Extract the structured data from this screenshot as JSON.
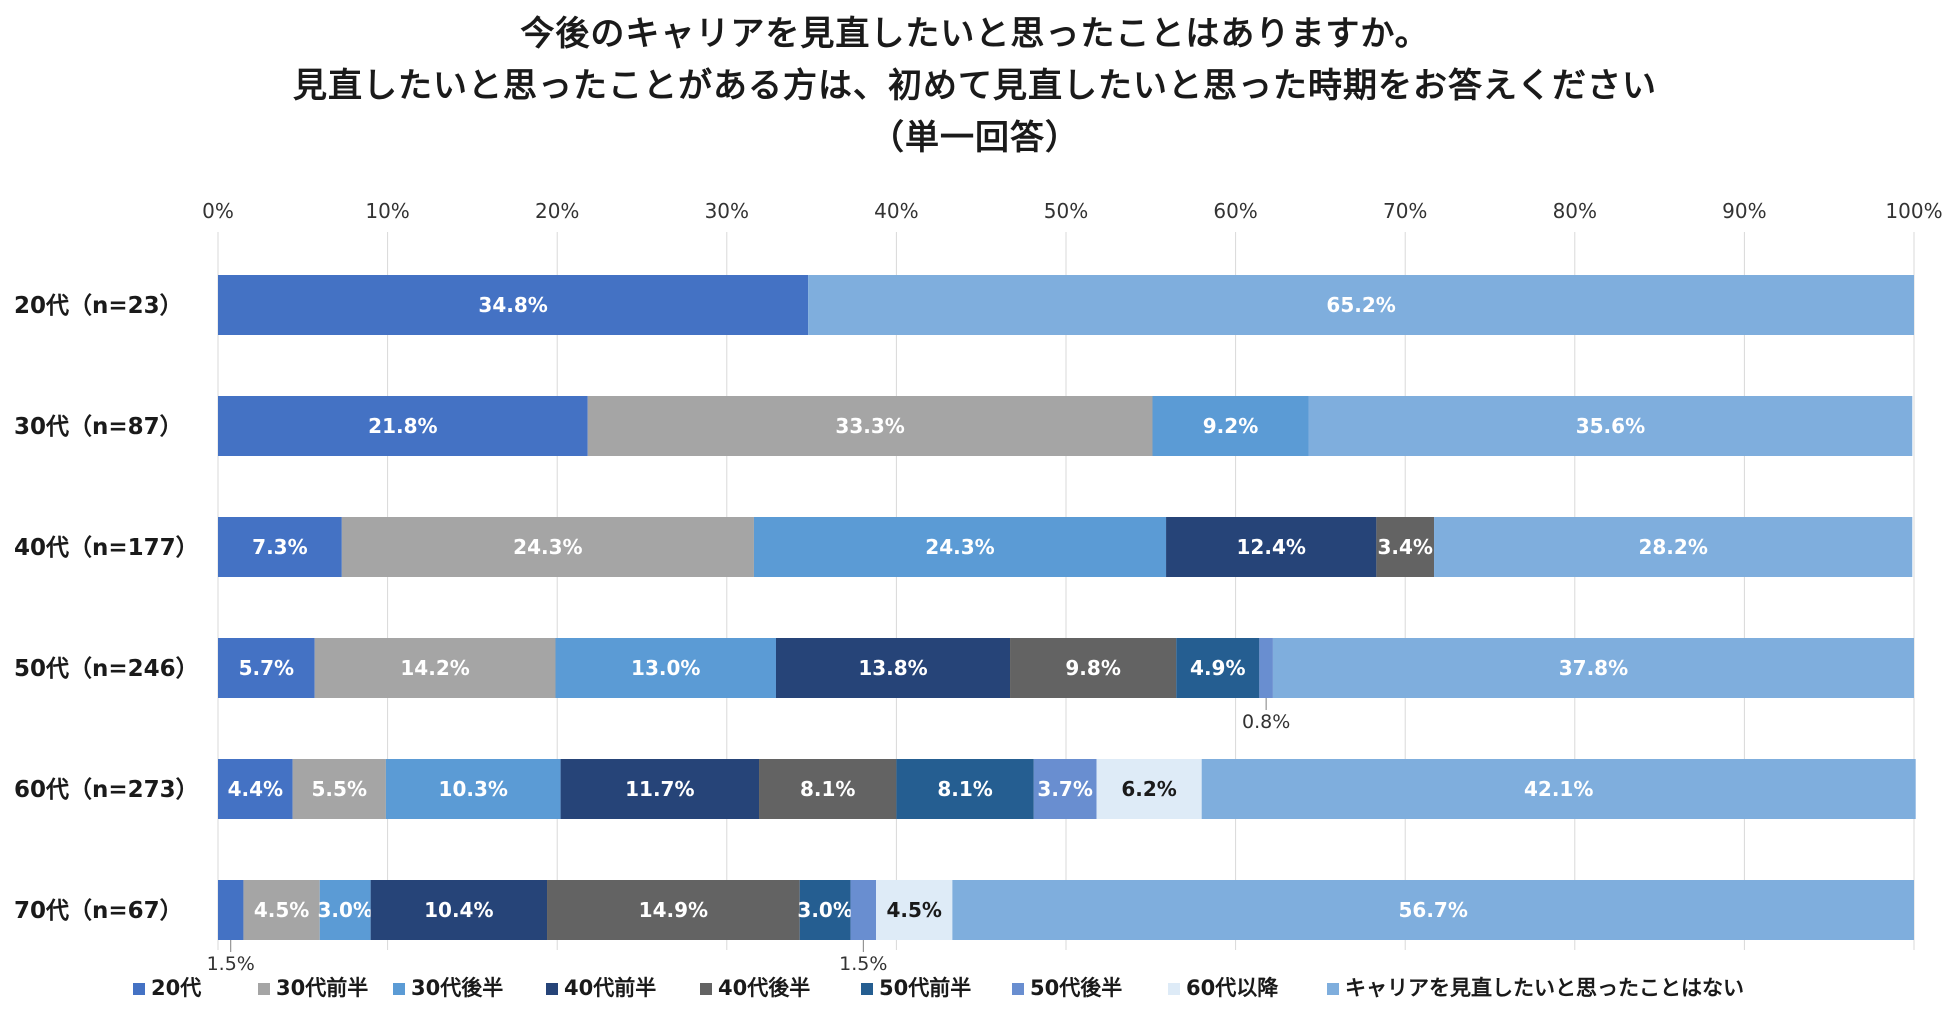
{
  "chart_data": {
    "type": "bar",
    "orientation": "horizontal",
    "stacked": "100%",
    "title_lines": [
      "今後のキャリアを見直したいと思ったことはありますか。",
      "見直したいと思ったことがある方は、初めて見直したいと思った時期をお答えください",
      "（単一回答）"
    ],
    "x_ticks": [
      "0%",
      "10%",
      "20%",
      "30%",
      "40%",
      "50%",
      "60%",
      "70%",
      "80%",
      "90%",
      "100%"
    ],
    "xlim": [
      0,
      100
    ],
    "grid": true,
    "legend_position": "bottom",
    "categories": [
      "20代（n=23）",
      "30代（n=87）",
      "40代（n=177）",
      "50代（n=246）",
      "60代（n=273）",
      "70代（n=67）"
    ],
    "series": [
      {
        "name": "20代",
        "color": "#4472C4",
        "label_color": "#ffffff",
        "values": [
          34.8,
          21.8,
          7.3,
          5.7,
          4.4,
          1.5
        ]
      },
      {
        "name": "30代前半",
        "color": "#A5A5A5",
        "label_color": "#ffffff",
        "values": [
          null,
          33.3,
          24.3,
          14.2,
          5.5,
          4.5
        ]
      },
      {
        "name": "30代後半",
        "color": "#5B9BD5",
        "label_color": "#ffffff",
        "values": [
          null,
          9.2,
          24.3,
          13.0,
          10.3,
          3.0
        ]
      },
      {
        "name": "40代前半",
        "color": "#264478",
        "label_color": "#ffffff",
        "values": [
          null,
          null,
          12.4,
          13.8,
          11.7,
          10.4
        ]
      },
      {
        "name": "40代後半",
        "color": "#636363",
        "label_color": "#ffffff",
        "values": [
          null,
          null,
          3.4,
          9.8,
          8.1,
          14.9
        ]
      },
      {
        "name": "50代前半",
        "color": "#255E91",
        "label_color": "#ffffff",
        "values": [
          null,
          null,
          null,
          4.9,
          8.1,
          3.0
        ]
      },
      {
        "name": "50代後半",
        "color": "#698ED0",
        "label_color": "#ffffff",
        "values": [
          null,
          null,
          null,
          0.8,
          3.7,
          1.5
        ]
      },
      {
        "name": "60代以降",
        "color": "#DEEBF7",
        "label_color": "#1a1a1a",
        "values": [
          null,
          null,
          null,
          null,
          6.2,
          4.5
        ]
      },
      {
        "name": "キャリアを見直したいと思ったことはない",
        "color": "#7FAEDD",
        "label_color": "#ffffff",
        "values": [
          65.2,
          35.6,
          28.2,
          37.8,
          42.1,
          56.7
        ]
      }
    ],
    "outside_labels": [
      {
        "category": 3,
        "series": 6,
        "text": "0.8%"
      },
      {
        "category": 5,
        "series": 0,
        "text": "1.5%"
      },
      {
        "category": 5,
        "series": 6,
        "text": "1.5%"
      }
    ]
  }
}
